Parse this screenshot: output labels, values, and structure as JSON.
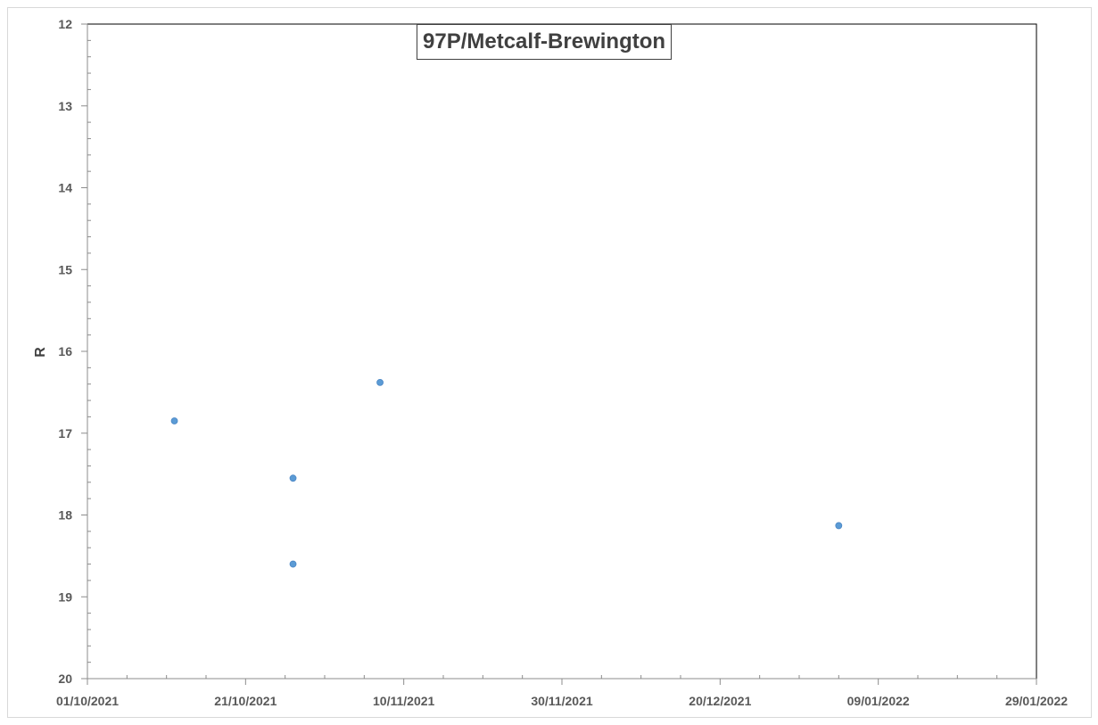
{
  "chart_data": {
    "type": "scatter",
    "title": "97P/Metcalf-Brewington",
    "xlabel": "",
    "ylabel": "R",
    "x_axis": {
      "type": "date",
      "min": "2021-10-01",
      "max": "2022-01-29",
      "tick_labels": [
        "01/10/2021",
        "21/10/2021",
        "10/11/2021",
        "30/11/2021",
        "20/12/2021",
        "09/01/2022",
        "29/01/2022"
      ]
    },
    "y_axis": {
      "reversed": true,
      "min": 12,
      "max": 20,
      "major_step": 1,
      "tick_labels": [
        "12",
        "13",
        "14",
        "15",
        "16",
        "17",
        "18",
        "19",
        "20"
      ]
    },
    "grid": false,
    "legend": "none",
    "series": [
      {
        "color": "#5b9bd5",
        "points": [
          {
            "x": "2021-10-12",
            "y": 16.85
          },
          {
            "x": "2021-10-27",
            "y": 17.55
          },
          {
            "x": "2021-10-27",
            "y": 18.6
          },
          {
            "x": "2021-11-07",
            "y": 16.38
          },
          {
            "x": "2022-01-04",
            "y": 18.13
          }
        ]
      }
    ]
  }
}
